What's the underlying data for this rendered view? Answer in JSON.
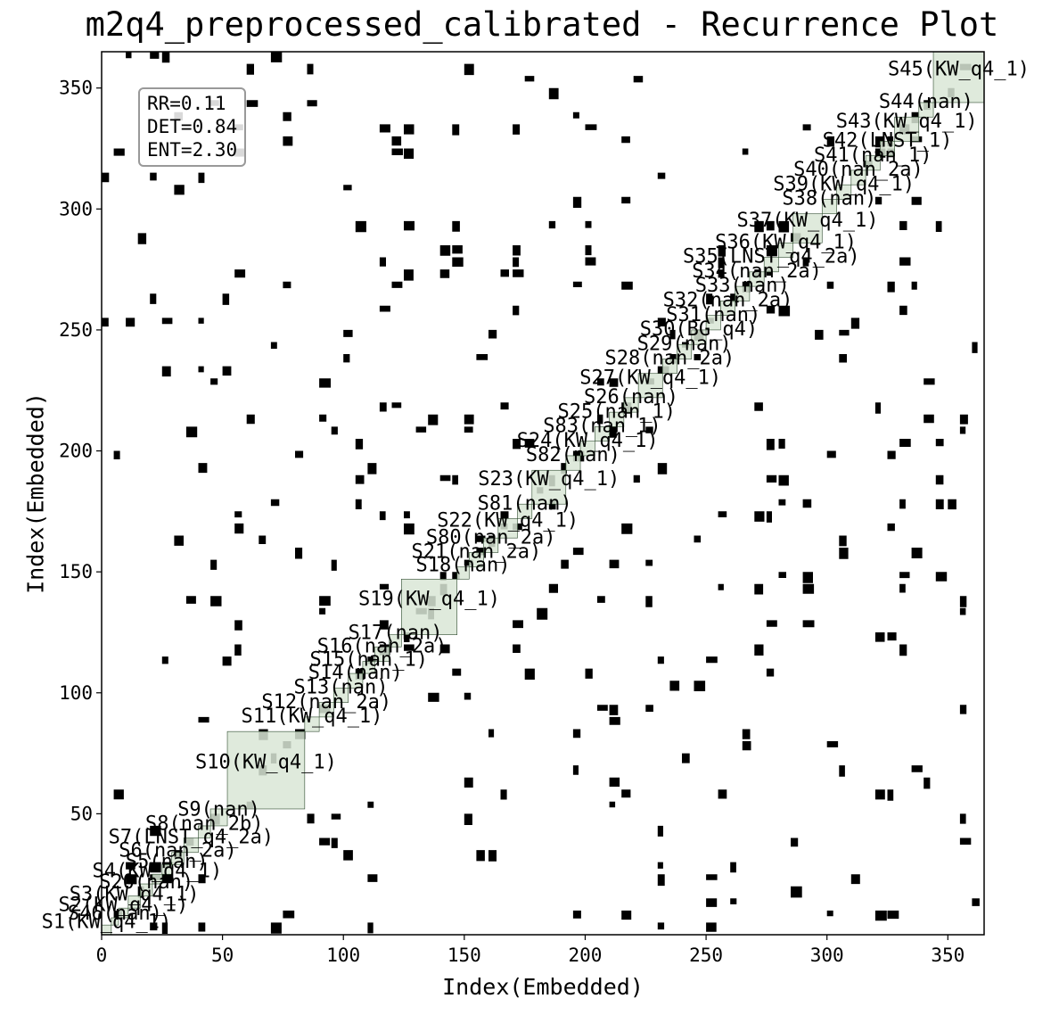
{
  "chart_data": {
    "type": "heatmap",
    "title": "m2q4_preprocessed_calibrated - Recurrence Plot",
    "xlabel": "Index(Embedded)",
    "ylabel": "Index(Embedded)",
    "xlim": [
      0,
      365
    ],
    "ylim": [
      0,
      365
    ],
    "xticks": [
      0,
      50,
      100,
      150,
      200,
      250,
      300,
      350
    ],
    "yticks": [
      50,
      100,
      150,
      200,
      250,
      300,
      350
    ],
    "colormap": {
      "recurrent": "#000000",
      "non_recurrent": "#ffffff",
      "segment_fill": "#d9e6d6"
    },
    "stats": {
      "rr": "RR=0.11",
      "det": "DET=0.84",
      "ent": "ENT=2.30"
    },
    "segments": [
      {
        "start": 0,
        "end": 4,
        "label": "S1(KW_q4_1)"
      },
      {
        "start": 4,
        "end": 7,
        "label": "S46(nan)"
      },
      {
        "start": 7,
        "end": 11,
        "label": "S2(KW_q4_1)"
      },
      {
        "start": 11,
        "end": 16,
        "label": "S3(KW_q4_1)"
      },
      {
        "start": 16,
        "end": 21,
        "label": "S20(nan)"
      },
      {
        "start": 21,
        "end": 25,
        "label": "S4(KW_q4_1)"
      },
      {
        "start": 25,
        "end": 29,
        "label": "S5(nan)"
      },
      {
        "start": 29,
        "end": 34,
        "label": "S6(nan_2a)"
      },
      {
        "start": 34,
        "end": 40,
        "label": "S7(LNST_q4_2a)"
      },
      {
        "start": 40,
        "end": 45,
        "label": "S8(nan_2b)"
      },
      {
        "start": 45,
        "end": 52,
        "label": "S9(nan)"
      },
      {
        "start": 52,
        "end": 84,
        "label": "S10(KW_q4_1)"
      },
      {
        "start": 84,
        "end": 90,
        "label": "S11(KW_q4_1)"
      },
      {
        "start": 90,
        "end": 96,
        "label": "S12(nan_2a)"
      },
      {
        "start": 96,
        "end": 102,
        "label": "S13(nan)"
      },
      {
        "start": 102,
        "end": 108,
        "label": "S14(nan)"
      },
      {
        "start": 108,
        "end": 113,
        "label": "S15(nan_1)"
      },
      {
        "start": 113,
        "end": 119,
        "label": "S16(nan_2a)"
      },
      {
        "start": 119,
        "end": 124,
        "label": "S17(nan)"
      },
      {
        "start": 124,
        "end": 147,
        "label": "S19(KW_q4_1)"
      },
      {
        "start": 147,
        "end": 152,
        "label": "S18(nan)"
      },
      {
        "start": 152,
        "end": 158,
        "label": "S21(nan_2a)"
      },
      {
        "start": 158,
        "end": 164,
        "label": "S80(nan_2a)"
      },
      {
        "start": 164,
        "end": 172,
        "label": "S22(KW_q4_1)"
      },
      {
        "start": 172,
        "end": 178,
        "label": "S81(nan)"
      },
      {
        "start": 178,
        "end": 192,
        "label": "S23(KW_q4_1)"
      },
      {
        "start": 192,
        "end": 198,
        "label": "S82(nan)"
      },
      {
        "start": 198,
        "end": 204,
        "label": "S24(KW_q4_1)"
      },
      {
        "start": 204,
        "end": 210,
        "label": "S83(nan_1)"
      },
      {
        "start": 210,
        "end": 216,
        "label": "S25(nan_1)"
      },
      {
        "start": 216,
        "end": 222,
        "label": "S26(nan)"
      },
      {
        "start": 222,
        "end": 232,
        "label": "S27(KW_q4_1)"
      },
      {
        "start": 232,
        "end": 238,
        "label": "S28(nan_2a)"
      },
      {
        "start": 238,
        "end": 244,
        "label": "S29(nan)"
      },
      {
        "start": 244,
        "end": 250,
        "label": "S30(BG_q4)"
      },
      {
        "start": 250,
        "end": 256,
        "label": "S31(nan)"
      },
      {
        "start": 256,
        "end": 262,
        "label": "S32(nan_2a)"
      },
      {
        "start": 262,
        "end": 268,
        "label": "S33(nan)"
      },
      {
        "start": 268,
        "end": 274,
        "label": "S34(nan_2a)"
      },
      {
        "start": 274,
        "end": 280,
        "label": "S35(LNST_q4_2a)"
      },
      {
        "start": 280,
        "end": 286,
        "label": "S36(KW_q4_1)"
      },
      {
        "start": 286,
        "end": 298,
        "label": "S37(KW_q4_1)"
      },
      {
        "start": 298,
        "end": 304,
        "label": "S38(nan)"
      },
      {
        "start": 304,
        "end": 310,
        "label": "S39(KW_q4_1)"
      },
      {
        "start": 310,
        "end": 316,
        "label": "S40(nan_2a)"
      },
      {
        "start": 316,
        "end": 322,
        "label": "S41(nan_1)"
      },
      {
        "start": 322,
        "end": 328,
        "label": "S42(LNST_1)"
      },
      {
        "start": 328,
        "end": 338,
        "label": "S43(KW_q4_1)"
      },
      {
        "start": 338,
        "end": 344,
        "label": "S44(nan)"
      },
      {
        "start": 344,
        "end": 365,
        "label": "S45(KW_q4_1)"
      }
    ]
  }
}
